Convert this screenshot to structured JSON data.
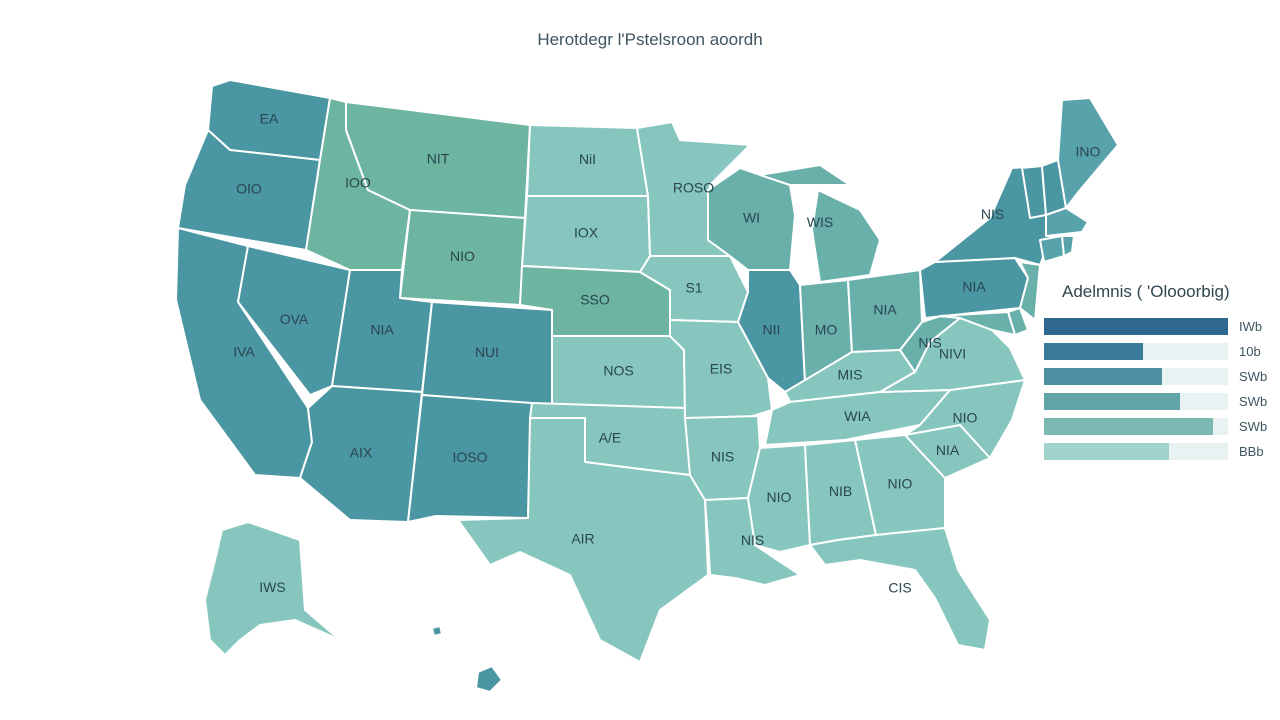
{
  "title": "Herotdegr l'Pstelsroon aoordh",
  "legend": {
    "title": "Adelmnis ( 'Olooorbig)",
    "items": [
      {
        "value_label": "IWb",
        "fraction": 1.0,
        "color": "#2f6891"
      },
      {
        "value_label": "10b",
        "fraction": 0.54,
        "color": "#3a7a98"
      },
      {
        "value_label": "SWb",
        "fraction": 0.64,
        "color": "#4d8fa0"
      },
      {
        "value_label": "SWb",
        "fraction": 0.74,
        "color": "#62a5a8"
      },
      {
        "value_label": "SWb",
        "fraction": 0.92,
        "color": "#7cb9b3"
      },
      {
        "value_label": "BBb",
        "fraction": 0.68,
        "color": "#a2d2cc"
      }
    ]
  },
  "palette": {
    "dark": "#4a96a3",
    "mid_dark": "#58a3ab",
    "mid": "#69b0ab",
    "green": "#6db5a1",
    "light": "#86c6be",
    "lighter": "#92ccc4"
  },
  "states": [
    {
      "id": "wa",
      "label": "EA",
      "shade": "dark"
    },
    {
      "id": "or",
      "label": "OIO",
      "shade": "dark"
    },
    {
      "id": "ca",
      "label": "IVA",
      "shade": "dark"
    },
    {
      "id": "nv",
      "label": "OVA",
      "shade": "dark"
    },
    {
      "id": "id",
      "label": "IOO",
      "shade": "green"
    },
    {
      "id": "mt",
      "label": "NIT",
      "shade": "green"
    },
    {
      "id": "wy",
      "label": "NIO",
      "shade": "green"
    },
    {
      "id": "ut",
      "label": "NIA",
      "shade": "dark"
    },
    {
      "id": "co",
      "label": "NUI",
      "shade": "dark"
    },
    {
      "id": "az",
      "label": "AIX",
      "shade": "dark"
    },
    {
      "id": "nm",
      "label": "IOSO",
      "shade": "dark"
    },
    {
      "id": "nd",
      "label": "NiI",
      "shade": "light"
    },
    {
      "id": "sd",
      "label": "IOX",
      "shade": "light"
    },
    {
      "id": "ne",
      "label": "SSO",
      "shade": "green"
    },
    {
      "id": "ks",
      "label": "NOS",
      "shade": "light"
    },
    {
      "id": "ok",
      "label": "A/E",
      "shade": "light"
    },
    {
      "id": "tx",
      "label": "AIR",
      "shade": "light"
    },
    {
      "id": "mn",
      "label": "ROSO",
      "shade": "light"
    },
    {
      "id": "ia",
      "label": "S1",
      "shade": "light"
    },
    {
      "id": "mo",
      "label": "EIS",
      "shade": "light"
    },
    {
      "id": "ar",
      "label": "NIS",
      "shade": "light"
    },
    {
      "id": "la",
      "label": "NIS",
      "shade": "light"
    },
    {
      "id": "wi",
      "label": "WI",
      "shade": "mid"
    },
    {
      "id": "il",
      "label": "NII",
      "shade": "dark"
    },
    {
      "id": "mi",
      "label": "WIS",
      "shade": "mid"
    },
    {
      "id": "in",
      "label": "MO",
      "shade": "mid"
    },
    {
      "id": "oh",
      "label": "NIA",
      "shade": "mid"
    },
    {
      "id": "ky",
      "label": "MIS",
      "shade": "light"
    },
    {
      "id": "tn",
      "label": "WIA",
      "shade": "light"
    },
    {
      "id": "ms",
      "label": "NIO",
      "shade": "light"
    },
    {
      "id": "al",
      "label": "NIB",
      "shade": "light"
    },
    {
      "id": "ga",
      "label": "NIO",
      "shade": "light"
    },
    {
      "id": "fl",
      "label": "CIS",
      "shade": "light"
    },
    {
      "id": "sc",
      "label": "NIA",
      "shade": "light"
    },
    {
      "id": "nc",
      "label": "NIO",
      "shade": "light"
    },
    {
      "id": "va",
      "label": "NIVI",
      "shade": "light"
    },
    {
      "id": "wv",
      "label": "NIS",
      "shade": "mid"
    },
    {
      "id": "pa",
      "label": "NIA",
      "shade": "dark"
    },
    {
      "id": "ny",
      "label": "NIS",
      "shade": "dark"
    },
    {
      "id": "nj",
      "label": "",
      "shade": "mid"
    },
    {
      "id": "de",
      "label": "",
      "shade": "mid"
    },
    {
      "id": "md",
      "label": "",
      "shade": "mid"
    },
    {
      "id": "vt",
      "label": "",
      "shade": "dark"
    },
    {
      "id": "nh",
      "label": "",
      "shade": "dark"
    },
    {
      "id": "me",
      "label": "INO",
      "shade": "mid_dark"
    },
    {
      "id": "ma",
      "label": "",
      "shade": "mid_dark"
    },
    {
      "id": "ct",
      "label": "",
      "shade": "mid_dark"
    },
    {
      "id": "ri",
      "label": "",
      "shade": "mid_dark"
    },
    {
      "id": "ak",
      "label": "IWS",
      "shade": "light"
    },
    {
      "id": "hi",
      "label": "",
      "shade": "dark"
    }
  ]
}
